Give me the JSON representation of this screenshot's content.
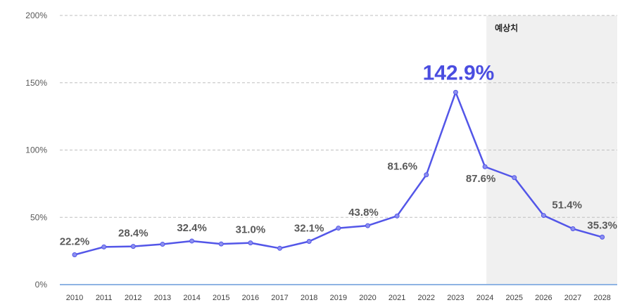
{
  "chart_data": {
    "type": "line",
    "x": [
      "2010",
      "2011",
      "2012",
      "2013",
      "2014",
      "2015",
      "2016",
      "2017",
      "2018",
      "2019",
      "2020",
      "2021",
      "2022",
      "2023",
      "2024",
      "2025",
      "2026",
      "2027",
      "2028"
    ],
    "series": [
      {
        "values": [
          22.2,
          28.0,
          28.4,
          30.0,
          32.4,
          30.2,
          31.0,
          27.0,
          32.1,
          42.0,
          43.8,
          51.0,
          81.6,
          142.9,
          87.6,
          79.5,
          51.4,
          41.5,
          35.3
        ],
        "color": "#5356E8"
      }
    ],
    "data_labels": [
      {
        "index": 0,
        "text": "22.2%"
      },
      {
        "index": 2,
        "text": "28.4%"
      },
      {
        "index": 4,
        "text": "32.4%"
      },
      {
        "index": 6,
        "text": "31.0%"
      },
      {
        "index": 8,
        "text": "32.1%"
      },
      {
        "index": 10,
        "text": "43.8%"
      },
      {
        "index": 12,
        "text": "81.6%"
      },
      {
        "index": 13,
        "text": "142.9%",
        "highlight": true
      },
      {
        "index": 14,
        "text": "87.6%"
      },
      {
        "index": 16,
        "text": "51.4%"
      },
      {
        "index": 18,
        "text": "35.3%"
      }
    ],
    "y_ticks": [
      "0%",
      "50%",
      "100%",
      "150%",
      "200%"
    ],
    "ylim": [
      0,
      200
    ],
    "grid": "horizontal-dashed",
    "forecast_region": {
      "from": "2024",
      "to": "2028",
      "label": "예상치",
      "fill": "#F0F0F0"
    },
    "colors": {
      "line": "#5356E8",
      "highlight_label": "#4A4DE0",
      "axis": "#8EB4E3",
      "grid": "#BFBFBF"
    }
  }
}
